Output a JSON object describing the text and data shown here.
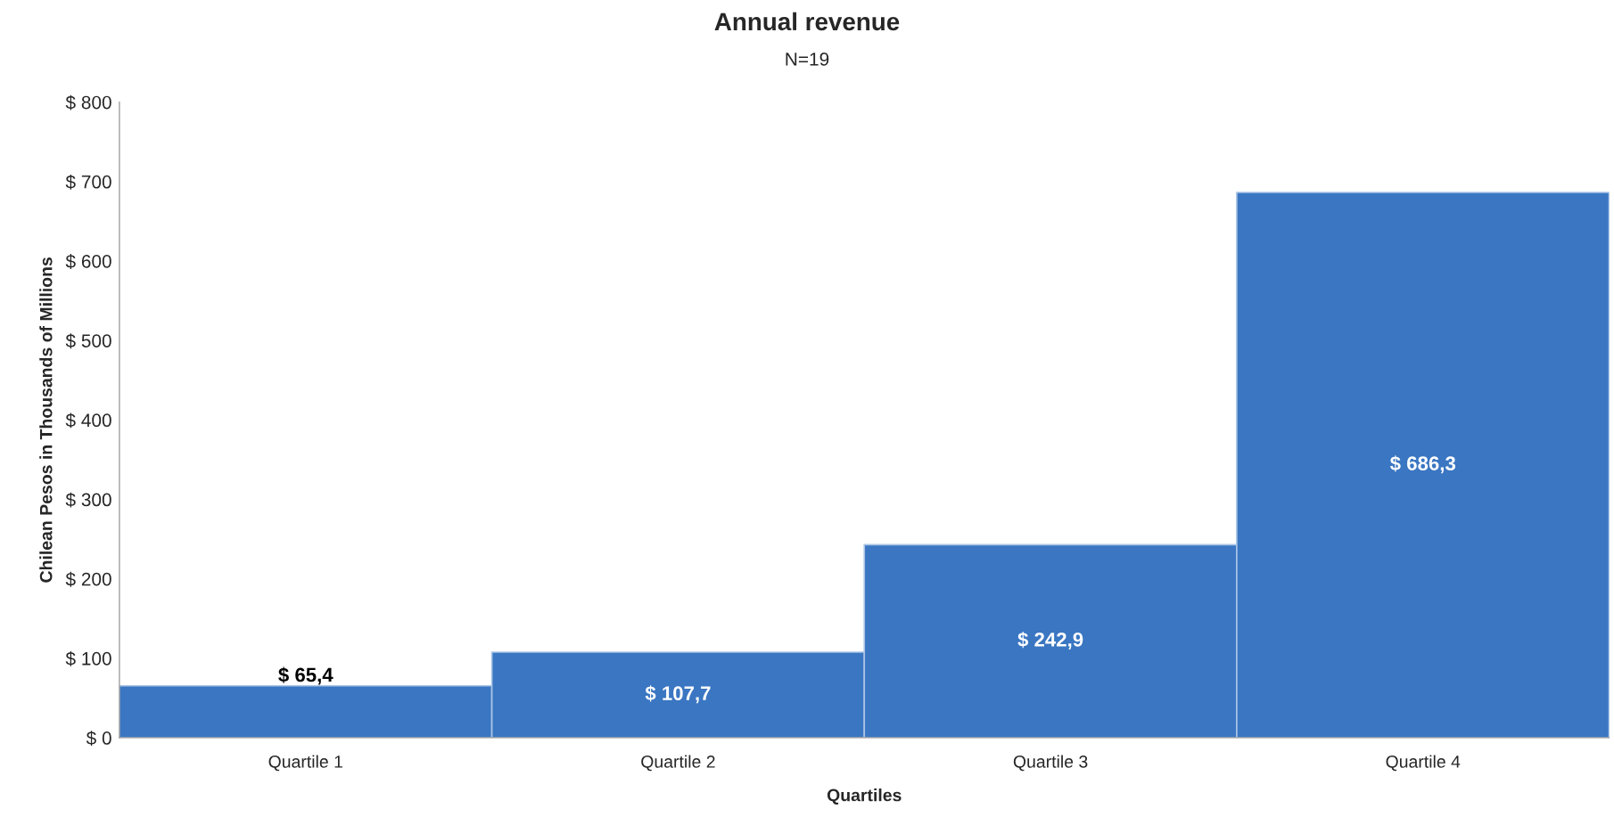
{
  "chart_data": {
    "type": "bar",
    "title": "Annual revenue",
    "subtitle": "N=19",
    "xlabel": "Quartiles",
    "ylabel": "Chilean Pesos in Thousands of Millions",
    "categories": [
      "Quartile 1",
      "Quartile 2",
      "Quartile 3",
      "Quartile 4"
    ],
    "values": [
      65.4,
      107.7,
      242.9,
      686.3
    ],
    "value_labels": [
      "$ 65,4",
      "$ 107,7",
      "$ 242,9",
      "$ 686,3"
    ],
    "color": "#3a76c2",
    "ylim": [
      0,
      800
    ],
    "yticks": [
      {
        "value": 0,
        "label": "$ 0"
      },
      {
        "value": 100,
        "label": "$ 100"
      },
      {
        "value": 200,
        "label": "$ 200"
      },
      {
        "value": 300,
        "label": "$ 300"
      },
      {
        "value": 400,
        "label": "$ 400"
      },
      {
        "value": 500,
        "label": "$ 500"
      },
      {
        "value": 600,
        "label": "$ 600"
      },
      {
        "value": 700,
        "label": "$ 700"
      },
      {
        "value": 800,
        "label": "$ 800"
      }
    ],
    "grid": false,
    "legend": false
  }
}
